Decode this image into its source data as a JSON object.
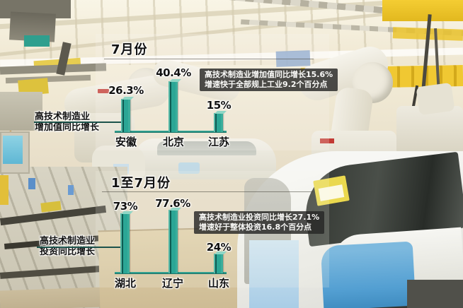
{
  "colors": {
    "bar": "#2ba695",
    "bar_edge_dark": "#0d5b52",
    "bar_cap": "#8fd6c5",
    "baseline": "#1a6f63",
    "connector": "#1c524b",
    "text": "#111111",
    "annotation_bg": "rgba(38,38,36,0.82)",
    "annotation_text": "#fafaf8"
  },
  "charts": {
    "july": {
      "title": "7月份",
      "axis_label_line1": "高技术制造业",
      "axis_label_line2": "增加值同比增长",
      "bars": [
        {
          "category": "安徽",
          "value": 26.3,
          "value_label": "26.3%"
        },
        {
          "category": "北京",
          "value": 40.4,
          "value_label": "40.4%"
        },
        {
          "category": "江苏",
          "value": 15,
          "value_label": "15%"
        }
      ],
      "annotation_line1": "高技术制造业增加值同比增长15.6%",
      "annotation_line2": "增速快于全部规上工业9.2个百分点"
    },
    "jan_to_july": {
      "title": "1至7月份",
      "axis_label_line1": "高技术制造业",
      "axis_label_line2": "投资同比增长",
      "bars": [
        {
          "category": "湖北",
          "value": 73,
          "value_label": "73%"
        },
        {
          "category": "辽宁",
          "value": 77.6,
          "value_label": "77.6%"
        },
        {
          "category": "山东",
          "value": 24,
          "value_label": "24%"
        }
      ],
      "annotation_line1": "高技术制造业投资同比增长27.1%",
      "annotation_line2": "增速好于整体投资16.8个百分点"
    }
  },
  "chart_data": [
    {
      "type": "bar",
      "title": "7月份",
      "ylabel": "高技术制造业增加值同比增长",
      "unit": "%",
      "categories": [
        "安徽",
        "北京",
        "江苏"
      ],
      "values": [
        26.3,
        40.4,
        15
      ],
      "data_labels": [
        "26.3%",
        "40.4%",
        "15%"
      ],
      "annotations": [
        "高技术制造业增加值同比增长15.6%",
        "增速快于全部规上工业9.2个百分点"
      ],
      "grid": false,
      "legend": "none",
      "bar_color": "#2ba695"
    },
    {
      "type": "bar",
      "title": "1至7月份",
      "ylabel": "高技术制造业投资同比增长",
      "unit": "%",
      "categories": [
        "湖北",
        "辽宁",
        "山东"
      ],
      "values": [
        73,
        77.6,
        24
      ],
      "data_labels": [
        "73%",
        "77.6%",
        "24%"
      ],
      "annotations": [
        "高技术制造业投资同比增长27.1%",
        "增速好于整体投资16.8个百分点"
      ],
      "grid": false,
      "legend": "none",
      "bar_color": "#2ba695"
    }
  ]
}
